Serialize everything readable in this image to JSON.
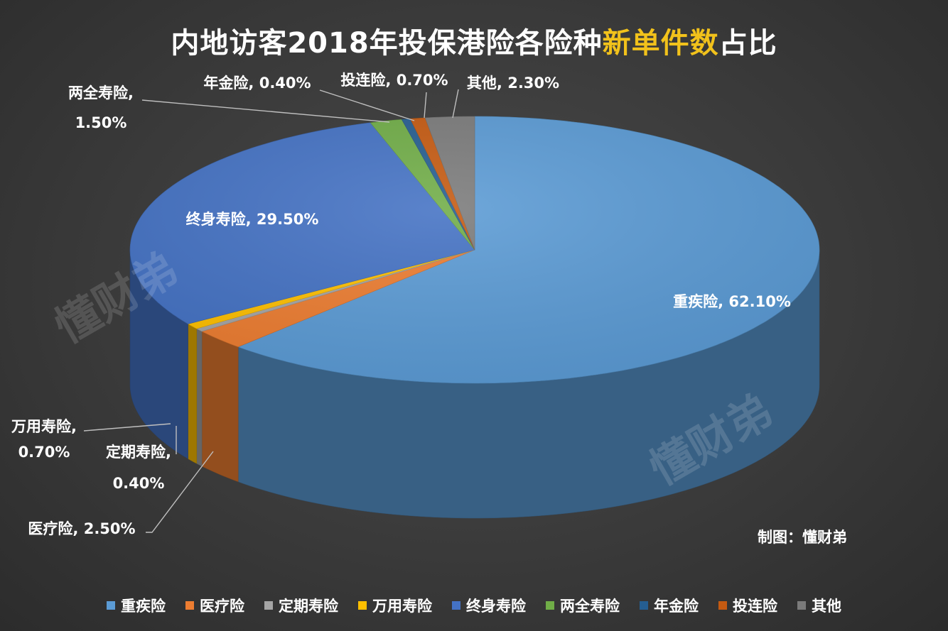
{
  "title": {
    "prefix": "内地访客2018年投保港险各险种",
    "highlight": "新单件数",
    "suffix": "占比"
  },
  "credit": "制图：懂财弟",
  "watermark": "懂财弟",
  "colors": {
    "highlight": "#f2c21b"
  },
  "chart_data": {
    "type": "pie",
    "three_d": true,
    "title": "内地访客2018年投保港险各险种新单件数占比",
    "legend_position": "bottom",
    "slices": [
      {
        "name": "重疾险",
        "value": 62.1,
        "label": "62.10%",
        "color": "#5b9bd5"
      },
      {
        "name": "医疗险",
        "value": 2.5,
        "label": "2.50%",
        "color": "#ed7d31"
      },
      {
        "name": "定期寿险",
        "value": 0.4,
        "label": "0.40%",
        "color": "#a5a5a5"
      },
      {
        "name": "万用寿险",
        "value": 0.7,
        "label": "0.70%",
        "color": "#ffc000"
      },
      {
        "name": "终身寿险",
        "value": 29.5,
        "label": "29.50%",
        "color": "#4472c4"
      },
      {
        "name": "两全寿险",
        "value": 1.5,
        "label": "1.50%",
        "color": "#70ad47"
      },
      {
        "name": "年金险",
        "value": 0.4,
        "label": "0.40%",
        "color": "#255e91"
      },
      {
        "name": "投连险",
        "value": 0.7,
        "label": "0.70%",
        "color": "#c55a11"
      },
      {
        "name": "其他",
        "value": 2.3,
        "label": "2.30%",
        "color": "#7b7b7b"
      }
    ]
  }
}
